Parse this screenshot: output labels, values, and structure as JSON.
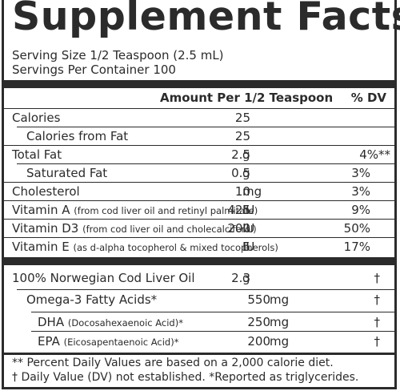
{
  "title": "Supplement Facts",
  "serving_size": "Serving Size 1/2 Teaspoon (2.5 mL)",
  "servings_per_container": "Servings Per Container 100",
  "header": {
    "amount": "Amount Per 1/2 Teaspoon",
    "dv": "% DV"
  },
  "rows": [
    {
      "name": "Calories",
      "amount": "25",
      "unit": "",
      "dv": ""
    },
    {
      "name": "Calories from Fat",
      "amount": "25",
      "unit": "",
      "dv": ""
    },
    {
      "name": "Total Fat",
      "amount": "2.5",
      "unit": "g",
      "dv": "4%**"
    },
    {
      "name": "Saturated Fat",
      "amount": "0.5",
      "unit": "g",
      "dv": "3%"
    },
    {
      "name": "Cholesterol",
      "amount": "10",
      "unit": "mg",
      "dv": "3%"
    },
    {
      "name": "Vitamin A",
      "note": "(from cod liver oil and retinyl palmitate)",
      "amount": "425",
      "unit": "IU",
      "dv": "9%"
    },
    {
      "name": "Vitamin D3",
      "note": "(from cod liver oil and cholecalciferol)",
      "amount": "200",
      "unit": "IU",
      "dv": "50%"
    },
    {
      "name": "Vitamin E",
      "note": "(as d-alpha tocopherol & mixed tocopherols)",
      "amount": "5",
      "unit": "IU",
      "dv": "17%"
    }
  ],
  "rows2": [
    {
      "name": "100% Norwegian Cod Liver Oil",
      "amount": "2.3",
      "unit": "g",
      "dv": "†"
    },
    {
      "name": "Omega-3 Fatty Acids*",
      "amount": "550",
      "unit": "mg",
      "dv": "†"
    },
    {
      "name": "DHA",
      "note": "(Docosahexaenoic Acid)*",
      "amount": "250",
      "unit": "mg",
      "dv": "†"
    },
    {
      "name": "EPA",
      "note": "(Eicosapentaenoic Acid)*",
      "amount": "200",
      "unit": "mg",
      "dv": "†"
    }
  ],
  "footnotes": [
    "** Percent Daily Values are based on a 2,000 calorie diet.",
    "† Daily Value (DV) not established. *Reported as triglycerides."
  ]
}
